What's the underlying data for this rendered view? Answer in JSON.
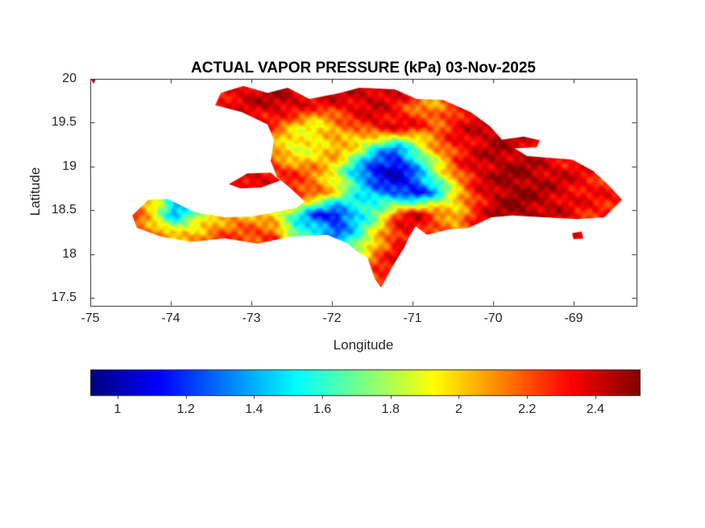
{
  "chart_data": {
    "type": "heatmap",
    "title": "ACTUAL VAPOR PRESSURE (kPa) 03-Nov-2025",
    "xlabel": "Longitude",
    "ylabel": "Latitude",
    "xlim": [
      -75,
      -68.22
    ],
    "ylim": [
      17.41,
      20
    ],
    "xticks": [
      -75,
      -74,
      -73,
      -72,
      -71,
      -70,
      -69
    ],
    "yticks": [
      17.5,
      18,
      18.5,
      19,
      19.5,
      20
    ],
    "grid_on": false,
    "colormap": "jet",
    "units": "kPa",
    "colorbar": {
      "orientation": "horizontal",
      "min": 0.92,
      "max": 2.53,
      "ticks": [
        1,
        1.2,
        1.4,
        1.6,
        1.8,
        2,
        2.2,
        2.4
      ]
    },
    "grid": {
      "lon0": -74.45,
      "dlon": 0.25,
      "nx": 25,
      "lat0": 19.95,
      "dlat": -0.25,
      "ny": 10,
      "values": [
        [
          null,
          null,
          null,
          null,
          2.35,
          2.4,
          2.4,
          2.45,
          2.45,
          2.45,
          2.45,
          2.4,
          2.45,
          2.45,
          2.4,
          2.4,
          2.45,
          2.4,
          null,
          null,
          null,
          null,
          null,
          null,
          null
        ],
        [
          null,
          null,
          null,
          null,
          2.3,
          2.35,
          2.4,
          2.45,
          2.4,
          2.3,
          2.35,
          2.4,
          2.4,
          2.3,
          2.15,
          2.05,
          2.25,
          2.4,
          2.4,
          2.35,
          null,
          null,
          null,
          null,
          null
        ],
        [
          null,
          null,
          null,
          null,
          2.25,
          2.3,
          2.35,
          2.2,
          2.0,
          1.9,
          2.05,
          2.2,
          2.35,
          2.4,
          2.3,
          2.2,
          2.35,
          2.4,
          2.45,
          2.4,
          2.35,
          null,
          null,
          null,
          null
        ],
        [
          null,
          null,
          null,
          null,
          null,
          2.3,
          2.25,
          2.0,
          1.85,
          1.95,
          2.1,
          1.9,
          1.5,
          1.3,
          1.7,
          2.1,
          2.3,
          2.4,
          2.45,
          2.4,
          2.35,
          2.3,
          null,
          null,
          null
        ],
        [
          null,
          null,
          null,
          null,
          2.3,
          2.35,
          2.4,
          2.3,
          2.2,
          2.1,
          1.9,
          1.4,
          1.05,
          1.0,
          1.35,
          1.8,
          2.2,
          2.4,
          2.45,
          2.5,
          2.45,
          2.4,
          2.35,
          2.3,
          null
        ],
        [
          null,
          null,
          null,
          null,
          null,
          2.35,
          2.4,
          2.35,
          2.3,
          2.2,
          1.9,
          1.6,
          1.4,
          1.2,
          1.1,
          1.45,
          1.95,
          2.3,
          2.45,
          2.5,
          2.45,
          2.4,
          2.35,
          2.3,
          null
        ],
        [
          2.2,
          1.9,
          1.4,
          1.7,
          2.0,
          2.1,
          2.0,
          1.9,
          1.6,
          1.2,
          1.1,
          1.45,
          1.7,
          2.25,
          2.4,
          2.2,
          2.05,
          2.3,
          2.45,
          2.5,
          2.45,
          2.4,
          2.3,
          null,
          null
        ],
        [
          2.3,
          2.2,
          2.05,
          2.1,
          2.2,
          2.2,
          2.25,
          2.3,
          null,
          1.6,
          1.3,
          1.55,
          2.0,
          2.3,
          2.4,
          null,
          null,
          null,
          null,
          null,
          null,
          null,
          null,
          null,
          null
        ],
        [
          null,
          null,
          null,
          null,
          null,
          null,
          null,
          null,
          null,
          null,
          2.0,
          1.9,
          2.2,
          2.35,
          null,
          null,
          null,
          null,
          null,
          null,
          null,
          null,
          null,
          null,
          null
        ],
        [
          null,
          null,
          null,
          null,
          null,
          null,
          null,
          null,
          null,
          null,
          null,
          null,
          2.3,
          null,
          null,
          null,
          null,
          null,
          null,
          null,
          null,
          null,
          null,
          null,
          null
        ]
      ]
    },
    "outlines": {
      "main": [
        [
          -73.45,
          19.7
        ],
        [
          -73.38,
          19.84
        ],
        [
          -73.1,
          19.92
        ],
        [
          -72.8,
          19.84
        ],
        [
          -72.55,
          19.9
        ],
        [
          -72.28,
          19.77
        ],
        [
          -71.9,
          19.84
        ],
        [
          -71.66,
          19.9
        ],
        [
          -71.22,
          19.88
        ],
        [
          -70.95,
          19.77
        ],
        [
          -70.62,
          19.76
        ],
        [
          -70.28,
          19.62
        ],
        [
          -70.04,
          19.46
        ],
        [
          -69.86,
          19.28
        ],
        [
          -69.58,
          19.12
        ],
        [
          -69.32,
          19.1
        ],
        [
          -69.02,
          19.08
        ],
        [
          -68.76,
          18.95
        ],
        [
          -68.56,
          18.78
        ],
        [
          -68.4,
          18.62
        ],
        [
          -68.62,
          18.42
        ],
        [
          -68.96,
          18.4
        ],
        [
          -69.36,
          18.42
        ],
        [
          -69.76,
          18.44
        ],
        [
          -70.02,
          18.42
        ],
        [
          -70.3,
          18.3
        ],
        [
          -70.56,
          18.28
        ],
        [
          -70.82,
          18.22
        ],
        [
          -70.96,
          18.32
        ],
        [
          -71.04,
          18.2
        ],
        [
          -71.1,
          18.08
        ],
        [
          -71.26,
          17.84
        ],
        [
          -71.39,
          17.62
        ],
        [
          -71.47,
          17.72
        ],
        [
          -71.56,
          17.96
        ],
        [
          -71.7,
          18.04
        ],
        [
          -71.8,
          18.12
        ],
        [
          -72.06,
          18.22
        ],
        [
          -72.52,
          18.2
        ],
        [
          -72.92,
          18.12
        ],
        [
          -73.32,
          18.18
        ],
        [
          -73.76,
          18.14
        ],
        [
          -74.12,
          18.2
        ],
        [
          -74.42,
          18.3
        ],
        [
          -74.48,
          18.44
        ],
        [
          -74.28,
          18.62
        ],
        [
          -74.04,
          18.63
        ],
        [
          -73.7,
          18.48
        ],
        [
          -73.34,
          18.42
        ],
        [
          -73.0,
          18.43
        ],
        [
          -72.7,
          18.48
        ],
        [
          -72.44,
          18.53
        ],
        [
          -72.34,
          18.6
        ],
        [
          -72.5,
          18.74
        ],
        [
          -72.68,
          18.88
        ],
        [
          -72.76,
          19.06
        ],
        [
          -72.72,
          19.3
        ],
        [
          -72.8,
          19.48
        ],
        [
          -73.12,
          19.62
        ]
      ],
      "gonave": [
        [
          -73.28,
          18.8
        ],
        [
          -73.05,
          18.92
        ],
        [
          -72.76,
          18.93
        ],
        [
          -72.64,
          18.84
        ],
        [
          -72.88,
          18.76
        ],
        [
          -73.14,
          18.75
        ]
      ],
      "samana": [
        [
          -69.95,
          19.3
        ],
        [
          -69.62,
          19.34
        ],
        [
          -69.42,
          19.3
        ],
        [
          -69.46,
          19.22
        ],
        [
          -69.85,
          19.2
        ]
      ],
      "saona": [
        [
          -69.02,
          18.24
        ],
        [
          -68.9,
          18.26
        ],
        [
          -68.88,
          18.18
        ],
        [
          -69.0,
          18.17
        ]
      ],
      "islet_nw": [
        [
          -74.99,
          20.0
        ],
        [
          -74.93,
          20.0
        ],
        [
          -74.96,
          19.94
        ]
      ]
    }
  }
}
